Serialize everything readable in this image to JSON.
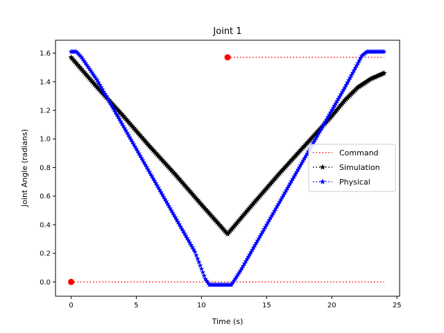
{
  "chart_data": {
    "type": "line",
    "title": "Joint 1",
    "xlabel": "Time (s)",
    "ylabel": "Joint Angle (radians)",
    "xlim": [
      -1.2,
      25.2
    ],
    "ylim": [
      -0.1,
      1.69
    ],
    "x_ticks": [
      0,
      5,
      10,
      15,
      20,
      25
    ],
    "y_ticks": [
      0.0,
      0.2,
      0.4,
      0.6,
      0.8,
      1.0,
      1.2,
      1.4,
      1.6
    ],
    "grid": false,
    "legend_position": "center-right",
    "series": [
      {
        "name": "Command",
        "color": "#ff0000",
        "linestyle": "dotted",
        "marker": "circle",
        "segments": [
          {
            "x": [
              0,
              24
            ],
            "y": [
              0.0,
              0.0
            ]
          },
          {
            "x": [
              12,
              24
            ],
            "y": [
              1.5708,
              1.5708
            ]
          }
        ],
        "markers": [
          {
            "x": 0,
            "y": 0.0
          },
          {
            "x": 12,
            "y": 1.5708
          }
        ]
      },
      {
        "name": "Simulation",
        "color": "#000000",
        "linestyle": "dotted",
        "marker": "star",
        "x": [
          0,
          2,
          4,
          6,
          8,
          10,
          12,
          14,
          16,
          17,
          18,
          19,
          20,
          21,
          22,
          23,
          24
        ],
        "y": [
          1.57,
          1.36,
          1.16,
          0.95,
          0.75,
          0.54,
          0.335,
          0.55,
          0.76,
          0.86,
          0.96,
          1.06,
          1.16,
          1.27,
          1.36,
          1.42,
          1.46
        ]
      },
      {
        "name": "Physical",
        "color": "#0000ff",
        "linestyle": "dotted",
        "marker": "star",
        "x": [
          0,
          0.4,
          0.8,
          2,
          4,
          6,
          8,
          9.5,
          10.3,
          10.6,
          12.3,
          13,
          15,
          17,
          19,
          21,
          22.3,
          22.7,
          24
        ],
        "y": [
          1.61,
          1.61,
          1.57,
          1.41,
          1.09,
          0.77,
          0.45,
          0.21,
          0.02,
          -0.02,
          -0.02,
          0.08,
          0.4,
          0.72,
          1.04,
          1.36,
          1.58,
          1.61,
          1.61
        ]
      }
    ]
  }
}
